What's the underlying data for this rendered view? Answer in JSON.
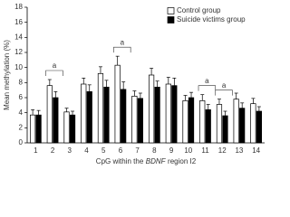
{
  "chart_data": {
    "type": "bar",
    "ylabel": "Mean methylation (%)",
    "xlabel": {
      "before": "CpG within the",
      "italic": "BDNF",
      "after": "region I2"
    },
    "categories": [
      "1",
      "2",
      "3",
      "4",
      "5",
      "6",
      "7",
      "8",
      "9",
      "10",
      "11",
      "12",
      "13",
      "14"
    ],
    "series": [
      {
        "name": "Control group",
        "color": "#ffffff",
        "values": [
          3.7,
          7.6,
          4.1,
          7.8,
          9.2,
          10.3,
          6.2,
          9.0,
          7.8,
          5.6,
          5.6,
          5.1,
          5.8,
          5.2
        ],
        "errors": [
          0.7,
          0.8,
          0.5,
          0.8,
          0.9,
          1.2,
          0.7,
          0.9,
          0.9,
          0.7,
          0.8,
          0.7,
          0.8,
          0.7
        ]
      },
      {
        "name": "Suicide victims group",
        "color": "#000000",
        "values": [
          3.7,
          6.0,
          3.7,
          6.8,
          7.4,
          7.1,
          5.9,
          7.4,
          7.6,
          6.0,
          4.4,
          3.6,
          4.6,
          4.2
        ],
        "errors": [
          0.6,
          0.8,
          0.5,
          0.9,
          0.9,
          1.0,
          0.7,
          0.8,
          1.0,
          0.7,
          0.7,
          0.6,
          0.7,
          0.6
        ]
      }
    ],
    "annotations": [
      {
        "text": "a",
        "category": "2"
      },
      {
        "text": "a",
        "category": "6"
      },
      {
        "text": "a",
        "category": "11"
      },
      {
        "text": "a",
        "category": "12"
      }
    ],
    "ylim": [
      0,
      18
    ],
    "yticks": [
      0,
      2,
      4,
      6,
      8,
      10,
      12,
      14,
      16,
      18
    ],
    "legend": "top-right"
  }
}
